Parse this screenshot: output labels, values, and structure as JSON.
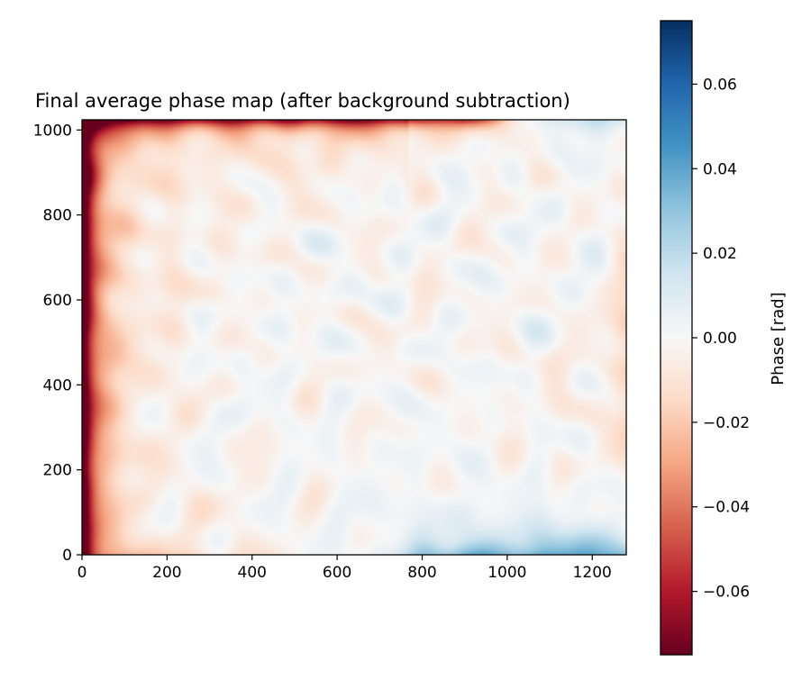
{
  "chart_data": {
    "type": "heatmap",
    "title": "Final average phase map (after background subtraction)",
    "xlabel": "",
    "ylabel": "",
    "xlim": [
      0,
      1280
    ],
    "ylim": [
      0,
      1024
    ],
    "x_ticks": [
      0,
      200,
      400,
      600,
      800,
      1000,
      1200
    ],
    "y_ticks": [
      0,
      200,
      400,
      600,
      800,
      1000
    ],
    "colormap": "RdBu",
    "colorbar": {
      "label": "Phase [rad]",
      "range": [
        -0.075,
        0.075
      ],
      "ticks": [
        -0.06,
        -0.04,
        -0.02,
        0.0,
        0.02,
        0.04,
        0.06
      ],
      "tick_labels": [
        "−0.06",
        "−0.04",
        "−0.02",
        "0.00",
        "0.02",
        "0.04",
        "0.06"
      ]
    },
    "features": {
      "left_edge_phase": -0.075,
      "top_edge_phase": -0.05,
      "bottom_right_phase": 0.035,
      "top_right_phase": 0.025,
      "interior_noise_amplitude": 0.012
    },
    "grid": false,
    "legend": "none"
  }
}
